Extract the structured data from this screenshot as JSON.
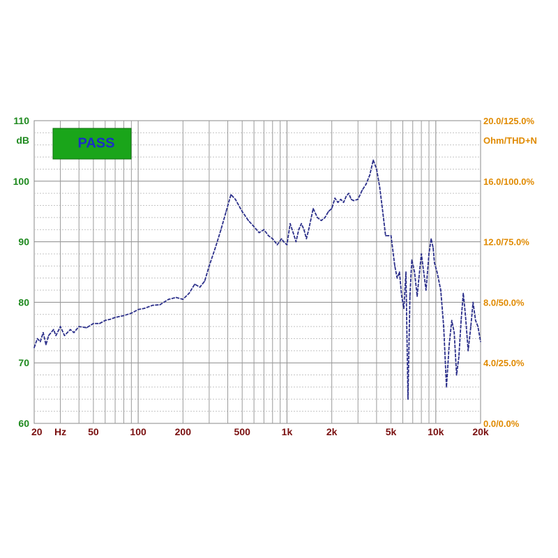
{
  "chart_data": {
    "type": "line",
    "xscale": "log",
    "xlim": [
      20,
      20000
    ],
    "ylim": [
      60,
      110
    ],
    "grid": true,
    "badge": "PASS",
    "left_axis": {
      "unit": "dB",
      "ticks": [
        {
          "v": 60,
          "label": "60"
        },
        {
          "v": 70,
          "label": "70"
        },
        {
          "v": 80,
          "label": "80"
        },
        {
          "v": 90,
          "label": "90"
        },
        {
          "v": 100,
          "label": "100"
        },
        {
          "v": 110,
          "label": "110"
        }
      ]
    },
    "right_axis": {
      "unit": "Ohm/THD+N",
      "ticks": [
        {
          "v": 60,
          "label": "0.0/0.0%"
        },
        {
          "v": 70,
          "label": "4.0/25.0%"
        },
        {
          "v": 80,
          "label": "8.0/50.0%"
        },
        {
          "v": 90,
          "label": "12.0/75.0%"
        },
        {
          "v": 100,
          "label": "16.0/100.0%"
        },
        {
          "v": 110,
          "label": "20.0/125.0%"
        }
      ]
    },
    "x_ticks": [
      {
        "v": 20,
        "label": "20"
      },
      {
        "v": 30,
        "label": "Hz"
      },
      {
        "v": 50,
        "label": "50"
      },
      {
        "v": 100,
        "label": "100"
      },
      {
        "v": 200,
        "label": "200"
      },
      {
        "v": 500,
        "label": "500"
      },
      {
        "v": 1000,
        "label": "1k"
      },
      {
        "v": 2000,
        "label": "2k"
      },
      {
        "v": 5000,
        "label": "5k"
      },
      {
        "v": 10000,
        "label": "10k"
      },
      {
        "v": 20000,
        "label": "20k"
      }
    ],
    "series": [
      {
        "color": "#2b2f8a",
        "points": [
          [
            20,
            72.5
          ],
          [
            21,
            74
          ],
          [
            22,
            73.5
          ],
          [
            23,
            75
          ],
          [
            24,
            73
          ],
          [
            25,
            74.5
          ],
          [
            27,
            75.5
          ],
          [
            28,
            74.5
          ],
          [
            30,
            76
          ],
          [
            32,
            74.5
          ],
          [
            35,
            75.5
          ],
          [
            37,
            75
          ],
          [
            40,
            76
          ],
          [
            45,
            75.8
          ],
          [
            50,
            76.5
          ],
          [
            55,
            76.5
          ],
          [
            60,
            77
          ],
          [
            65,
            77.2
          ],
          [
            70,
            77.5
          ],
          [
            80,
            77.8
          ],
          [
            90,
            78.2
          ],
          [
            100,
            78.8
          ],
          [
            110,
            79
          ],
          [
            125,
            79.5
          ],
          [
            140,
            79.6
          ],
          [
            160,
            80.5
          ],
          [
            180,
            80.8
          ],
          [
            200,
            80.5
          ],
          [
            220,
            81.5
          ],
          [
            240,
            83
          ],
          [
            260,
            82.5
          ],
          [
            280,
            83.5
          ],
          [
            300,
            86
          ],
          [
            330,
            89
          ],
          [
            360,
            92
          ],
          [
            390,
            95
          ],
          [
            420,
            97.8
          ],
          [
            450,
            97
          ],
          [
            500,
            95
          ],
          [
            550,
            93.5
          ],
          [
            600,
            92.5
          ],
          [
            650,
            91.5
          ],
          [
            700,
            92
          ],
          [
            750,
            91
          ],
          [
            800,
            90.5
          ],
          [
            860,
            89.5
          ],
          [
            920,
            90.5
          ],
          [
            950,
            90
          ],
          [
            1000,
            89.5
          ],
          [
            1050,
            93
          ],
          [
            1100,
            91.5
          ],
          [
            1150,
            90
          ],
          [
            1200,
            92
          ],
          [
            1250,
            93
          ],
          [
            1300,
            92
          ],
          [
            1350,
            90.5
          ],
          [
            1400,
            92
          ],
          [
            1500,
            95.5
          ],
          [
            1600,
            94
          ],
          [
            1700,
            93.5
          ],
          [
            1800,
            94
          ],
          [
            1900,
            95
          ],
          [
            2000,
            95.5
          ],
          [
            2100,
            97.2
          ],
          [
            2200,
            96.5
          ],
          [
            2300,
            97
          ],
          [
            2400,
            96.5
          ],
          [
            2500,
            97.5
          ],
          [
            2600,
            98
          ],
          [
            2700,
            97
          ],
          [
            2800,
            96.8
          ],
          [
            3000,
            97
          ],
          [
            3200,
            98.5
          ],
          [
            3400,
            99.5
          ],
          [
            3600,
            101
          ],
          [
            3800,
            103.5
          ],
          [
            4000,
            102
          ],
          [
            4200,
            99
          ],
          [
            4400,
            95
          ],
          [
            4600,
            91
          ],
          [
            4800,
            91
          ],
          [
            5000,
            91
          ],
          [
            5300,
            86
          ],
          [
            5500,
            84
          ],
          [
            5700,
            85
          ],
          [
            5900,
            81
          ],
          [
            6100,
            79
          ],
          [
            6300,
            85
          ],
          [
            6500,
            64
          ],
          [
            6700,
            81
          ],
          [
            6900,
            87
          ],
          [
            7200,
            85
          ],
          [
            7500,
            81
          ],
          [
            7700,
            84
          ],
          [
            8000,
            88
          ],
          [
            8300,
            85
          ],
          [
            8600,
            82
          ],
          [
            9000,
            88
          ],
          [
            9300,
            90.5
          ],
          [
            9600,
            89
          ],
          [
            9800,
            86.5
          ],
          [
            10200,
            85
          ],
          [
            10800,
            82
          ],
          [
            11300,
            76
          ],
          [
            11800,
            66
          ],
          [
            12300,
            73
          ],
          [
            12800,
            77
          ],
          [
            13300,
            75
          ],
          [
            13800,
            68
          ],
          [
            14300,
            71
          ],
          [
            14800,
            77
          ],
          [
            15300,
            81.5
          ],
          [
            15800,
            78
          ],
          [
            16500,
            72
          ],
          [
            17200,
            76
          ],
          [
            17800,
            80
          ],
          [
            18500,
            77
          ],
          [
            19200,
            76
          ],
          [
            20000,
            73.5
          ]
        ]
      }
    ]
  }
}
